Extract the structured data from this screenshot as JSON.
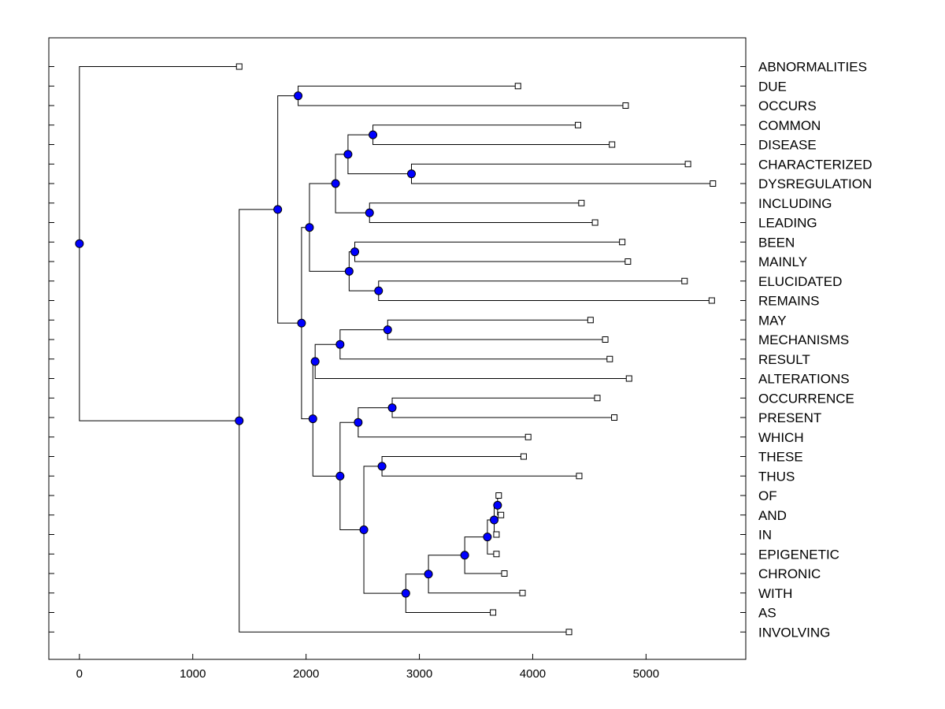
{
  "chart_data": {
    "type": "dendrogram",
    "orientation": "horizontal",
    "leaves": [
      "ABNORMALITIES",
      "DUE",
      "OCCURS",
      "COMMON",
      "DISEASE",
      "CHARACTERIZED",
      "DYSREGULATION",
      "INCLUDING",
      "LEADING",
      "BEEN",
      "MAINLY",
      "ELUCIDATED",
      "REMAINS",
      "MAY",
      "MECHANISMS",
      "RESULT",
      "ALTERATIONS",
      "OCCURRENCE",
      "PRESENT",
      "WHICH",
      "THESE",
      "THUS",
      "OF",
      "AND",
      "IN",
      "EPIGENETIC",
      "CHRONIC",
      "WITH",
      "AS",
      "INVOLVING"
    ],
    "leaf_x": [
      1410,
      3870,
      4820,
      4400,
      4700,
      5370,
      5590,
      4430,
      4550,
      4790,
      4840,
      5340,
      5580,
      4510,
      4640,
      4680,
      4850,
      4570,
      4720,
      3960,
      3920,
      4410,
      3700,
      3720,
      3680,
      3680,
      3750,
      3910,
      3650,
      4320
    ],
    "nodes": [
      {
        "x": 1930,
        "children": [
          "L1",
          "L2"
        ]
      },
      {
        "x": 2590,
        "children": [
          "L3",
          "L4"
        ]
      },
      {
        "x": 2930,
        "children": [
          "L5",
          "L6"
        ]
      },
      {
        "x": 2370,
        "children": [
          "N1",
          "N2"
        ]
      },
      {
        "x": 2560,
        "children": [
          "L7",
          "L8"
        ]
      },
      {
        "x": 2260,
        "children": [
          "N3",
          "N4"
        ]
      },
      {
        "x": 2430,
        "children": [
          "L9",
          "L10"
        ]
      },
      {
        "x": 2640,
        "children": [
          "L11",
          "L12"
        ]
      },
      {
        "x": 2380,
        "children": [
          "N6",
          "N7"
        ]
      },
      {
        "x": 2030,
        "children": [
          "N5",
          "N8"
        ]
      },
      {
        "x": 2720,
        "children": [
          "L13",
          "L14"
        ]
      },
      {
        "x": 2300,
        "children": [
          "N10",
          "L15"
        ]
      },
      {
        "x": 2080,
        "children": [
          "N11",
          "L16"
        ]
      },
      {
        "x": 2760,
        "children": [
          "L17",
          "L18"
        ]
      },
      {
        "x": 2460,
        "children": [
          "N13",
          "L19"
        ]
      },
      {
        "x": 2670,
        "children": [
          "L20",
          "L21"
        ]
      },
      {
        "x": 3690,
        "children": [
          "L22",
          "L23"
        ]
      },
      {
        "x": 3660,
        "children": [
          "N16",
          "L24"
        ]
      },
      {
        "x": 3600,
        "children": [
          "N17",
          "L25"
        ]
      },
      {
        "x": 3400,
        "children": [
          "N18",
          "L26"
        ]
      },
      {
        "x": 3080,
        "children": [
          "N19",
          "L27"
        ]
      },
      {
        "x": 2880,
        "children": [
          "N20",
          "L28"
        ]
      },
      {
        "x": 2510,
        "children": [
          "N15",
          "N21"
        ]
      },
      {
        "x": 2300,
        "children": [
          "N14",
          "N22"
        ]
      },
      {
        "x": 2060,
        "children": [
          "N12",
          "N23"
        ]
      },
      {
        "x": 1960,
        "children": [
          "N9",
          "N24"
        ]
      },
      {
        "x": 1750,
        "children": [
          "N0",
          "N25"
        ]
      },
      {
        "x": 1410,
        "children": [
          "N26",
          "L29"
        ]
      },
      {
        "x": 0,
        "children": [
          "L0",
          "N27"
        ]
      }
    ],
    "x_ticks": [
      0,
      1000,
      2000,
      3000,
      4000,
      5000
    ],
    "x_range": [
      -270,
      5880
    ],
    "title": "",
    "xlabel": "",
    "ylabel": "",
    "colors": {
      "node_fill": "#0000ff",
      "leaf_fill": "#ffffff",
      "line": "#000000"
    }
  }
}
